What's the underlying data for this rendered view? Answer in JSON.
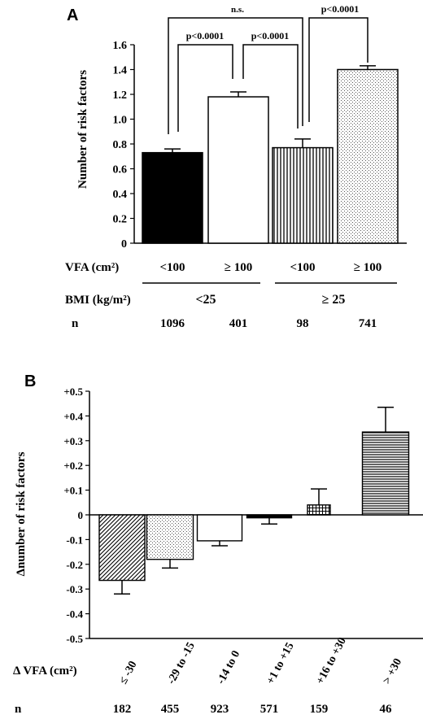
{
  "chart_data": [
    {
      "type": "bar",
      "panel_label": "A",
      "ylabel": "Number of risk factors",
      "ylim": [
        0,
        1.6
      ],
      "yticks": [
        "0",
        "0.2",
        "0.4",
        "0.6",
        "0.8",
        "1.0",
        "1.2",
        "1.4",
        "1.6"
      ],
      "categories": [
        "<100",
        "≥ 100",
        "<100",
        "≥ 100"
      ],
      "values": [
        0.73,
        1.18,
        0.77,
        1.4
      ],
      "errors": [
        0.03,
        0.04,
        0.07,
        0.03
      ],
      "fills": [
        "solid-black",
        "white",
        "vertical-lines",
        "dots"
      ],
      "row_labels": {
        "vfa": "VFA (cm²)",
        "bmi": "BMI (kg/m²)",
        "n": "n"
      },
      "bmi_groups": [
        "<25",
        "≥ 25"
      ],
      "n": [
        "1096",
        "401",
        "98",
        "741"
      ],
      "comparisons": [
        {
          "from": 0,
          "to": 1,
          "label": "p<0.0001"
        },
        {
          "from": 1,
          "to": 2,
          "label": "p<0.0001"
        },
        {
          "from": 0,
          "to": 2,
          "label": "n.s."
        },
        {
          "from": 2,
          "to": 3,
          "label": "p<0.0001"
        }
      ],
      "grid": false
    },
    {
      "type": "bar",
      "panel_label": "B",
      "ylabel": "Δnumber of risk factors",
      "ylim": [
        -0.5,
        0.5
      ],
      "yticks": [
        "-0.5",
        "-0.4",
        "-0.3",
        "-0.2",
        "-0.1",
        "0",
        "+0.1",
        "+0.2",
        "+0.3",
        "+0.4",
        "+0.5"
      ],
      "categories": [
        "≤ -30",
        "-29 to -15",
        "-14 to 0",
        "+1 to +15",
        "+16 to +30",
        "> +30"
      ],
      "values": [
        -0.265,
        -0.18,
        -0.105,
        -0.012,
        0.04,
        0.335
      ],
      "errors": [
        0.055,
        0.035,
        0.02,
        0.025,
        0.065,
        0.1
      ],
      "fills": [
        "diagonal-lines",
        "dots",
        "white",
        "solid-black",
        "grid",
        "horizontal-lines"
      ],
      "row_labels": {
        "vfa": "Δ VFA (cm²)",
        "n": "n"
      },
      "n": [
        "182",
        "455",
        "923",
        "571",
        "159",
        "46"
      ],
      "grid": false
    }
  ]
}
